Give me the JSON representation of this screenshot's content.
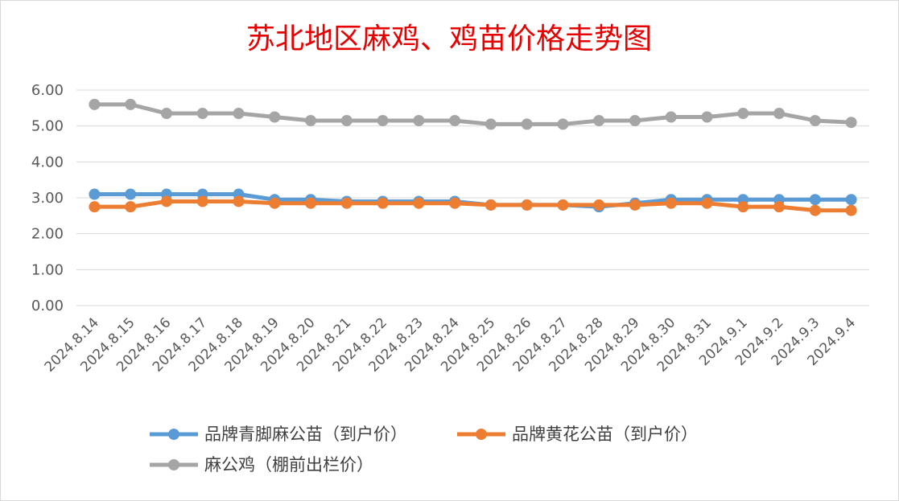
{
  "chart_data": {
    "type": "line",
    "title": "苏北地区麻鸡、鸡苗价格走势图",
    "xlabel": "",
    "ylabel": "",
    "ylim": [
      0,
      6
    ],
    "yticks": [
      "0.00",
      "1.00",
      "2.00",
      "3.00",
      "4.00",
      "5.00",
      "6.00"
    ],
    "grid": true,
    "legend_position": "bottom",
    "categories": [
      "2024.8.14",
      "2024.8.15",
      "2024.8.16",
      "2024.8.17",
      "2024.8.18",
      "2024.8.19",
      "2024.8.20",
      "2024.8.21",
      "2024.8.22",
      "2024.8.23",
      "2024.8.24",
      "2024.8.25",
      "2024.8.26",
      "2024.8.27",
      "2024.8.28",
      "2024.8.29",
      "2024.8.30",
      "2024.8.31",
      "2024.9.1",
      "2024.9.2",
      "2024.9.3",
      "2024.9.4"
    ],
    "series": [
      {
        "name": "品牌青脚麻公苗（到户价）",
        "color": "#5b9bd5",
        "values": [
          3.1,
          3.1,
          3.1,
          3.1,
          3.1,
          2.95,
          2.95,
          2.9,
          2.9,
          2.9,
          2.9,
          2.8,
          2.8,
          2.8,
          2.75,
          2.85,
          2.95,
          2.95,
          2.95,
          2.95,
          2.95,
          2.95
        ]
      },
      {
        "name": "品牌黄花公苗（到户价）",
        "color": "#ed7d31",
        "values": [
          2.75,
          2.75,
          2.9,
          2.9,
          2.9,
          2.85,
          2.85,
          2.85,
          2.85,
          2.85,
          2.85,
          2.8,
          2.8,
          2.8,
          2.8,
          2.8,
          2.85,
          2.85,
          2.75,
          2.75,
          2.65,
          2.65
        ]
      },
      {
        "name": "麻公鸡（棚前出栏价）",
        "color": "#a5a5a5",
        "values": [
          5.6,
          5.6,
          5.35,
          5.35,
          5.35,
          5.25,
          5.15,
          5.15,
          5.15,
          5.15,
          5.15,
          5.05,
          5.05,
          5.05,
          5.15,
          5.15,
          5.25,
          5.25,
          5.35,
          5.35,
          5.15,
          5.1
        ]
      }
    ]
  }
}
